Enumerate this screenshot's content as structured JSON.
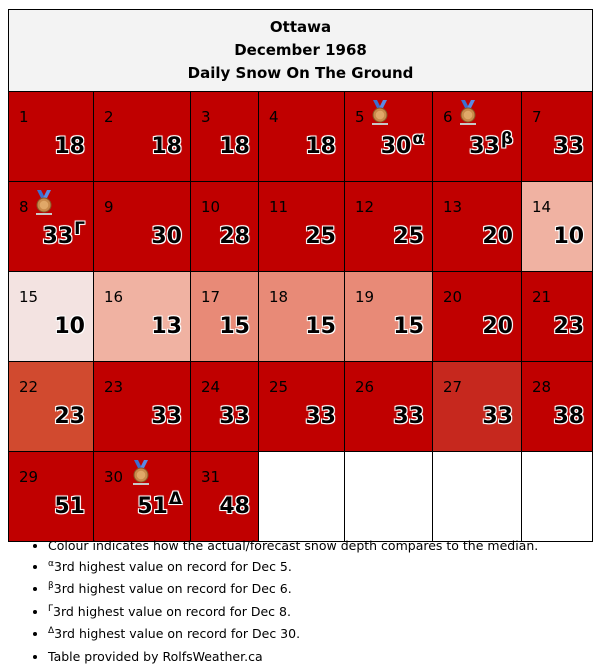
{
  "header": {
    "city": "Ottawa",
    "month": "December 1968",
    "subtitle": "Daily Snow On The Ground"
  },
  "colors": {
    "well_above": "#c00000",
    "above_dark": "#c6281e",
    "above": "#d14a2f",
    "near_high": "#e88a77",
    "near": "#f0b2a2",
    "below": "#f3e3e1"
  },
  "days": [
    {
      "day": "1",
      "value": "18",
      "color": "#c00000"
    },
    {
      "day": "2",
      "value": "18",
      "color": "#c00000"
    },
    {
      "day": "3",
      "value": "18",
      "color": "#c00000"
    },
    {
      "day": "4",
      "value": "18",
      "color": "#c00000"
    },
    {
      "day": "5",
      "value": "30",
      "sup": "α",
      "medal": true,
      "color": "#c00000"
    },
    {
      "day": "6",
      "value": "33",
      "sup": "β",
      "medal": true,
      "color": "#c00000"
    },
    {
      "day": "7",
      "value": "33",
      "color": "#c00000"
    },
    {
      "day": "8",
      "value": "33",
      "sup": "Γ",
      "medal": true,
      "color": "#c00000"
    },
    {
      "day": "9",
      "value": "30",
      "color": "#c00000"
    },
    {
      "day": "10",
      "value": "28",
      "color": "#c00000"
    },
    {
      "day": "11",
      "value": "25",
      "color": "#c00000"
    },
    {
      "day": "12",
      "value": "25",
      "color": "#c00000"
    },
    {
      "day": "13",
      "value": "20",
      "color": "#c00000"
    },
    {
      "day": "14",
      "value": "10",
      "color": "#f0b2a2"
    },
    {
      "day": "15",
      "value": "10",
      "color": "#f3e3e1"
    },
    {
      "day": "16",
      "value": "13",
      "color": "#f0b2a2"
    },
    {
      "day": "17",
      "value": "15",
      "color": "#e88a77"
    },
    {
      "day": "18",
      "value": "15",
      "color": "#e88a77"
    },
    {
      "day": "19",
      "value": "15",
      "color": "#e88a77"
    },
    {
      "day": "20",
      "value": "20",
      "color": "#c00000"
    },
    {
      "day": "21",
      "value": "23",
      "color": "#c00000"
    },
    {
      "day": "22",
      "value": "23",
      "color": "#d14a2f"
    },
    {
      "day": "23",
      "value": "33",
      "color": "#c00000"
    },
    {
      "day": "24",
      "value": "33",
      "color": "#c00000"
    },
    {
      "day": "25",
      "value": "33",
      "color": "#c00000"
    },
    {
      "day": "26",
      "value": "33",
      "color": "#c00000"
    },
    {
      "day": "27",
      "value": "33",
      "color": "#c6281e"
    },
    {
      "day": "28",
      "value": "38",
      "color": "#c00000"
    },
    {
      "day": "29",
      "value": "51",
      "color": "#c00000"
    },
    {
      "day": "30",
      "value": "51",
      "sup": "Δ",
      "medal": true,
      "color": "#c00000"
    },
    {
      "day": "31",
      "value": "48",
      "color": "#c00000"
    }
  ],
  "notes": [
    {
      "sup": "",
      "text": "Colour indicates how the actual/forecast snow depth compares to the median."
    },
    {
      "sup": "α",
      "text": "3rd highest value on record for Dec 5."
    },
    {
      "sup": "β",
      "text": "3rd highest value on record for Dec 6."
    },
    {
      "sup": "Γ",
      "text": "3rd highest value on record for Dec 8."
    },
    {
      "sup": "Δ",
      "text": "3rd highest value on record for Dec 30."
    },
    {
      "sup": "",
      "text": "Table provided by RolfsWeather.ca"
    }
  ]
}
